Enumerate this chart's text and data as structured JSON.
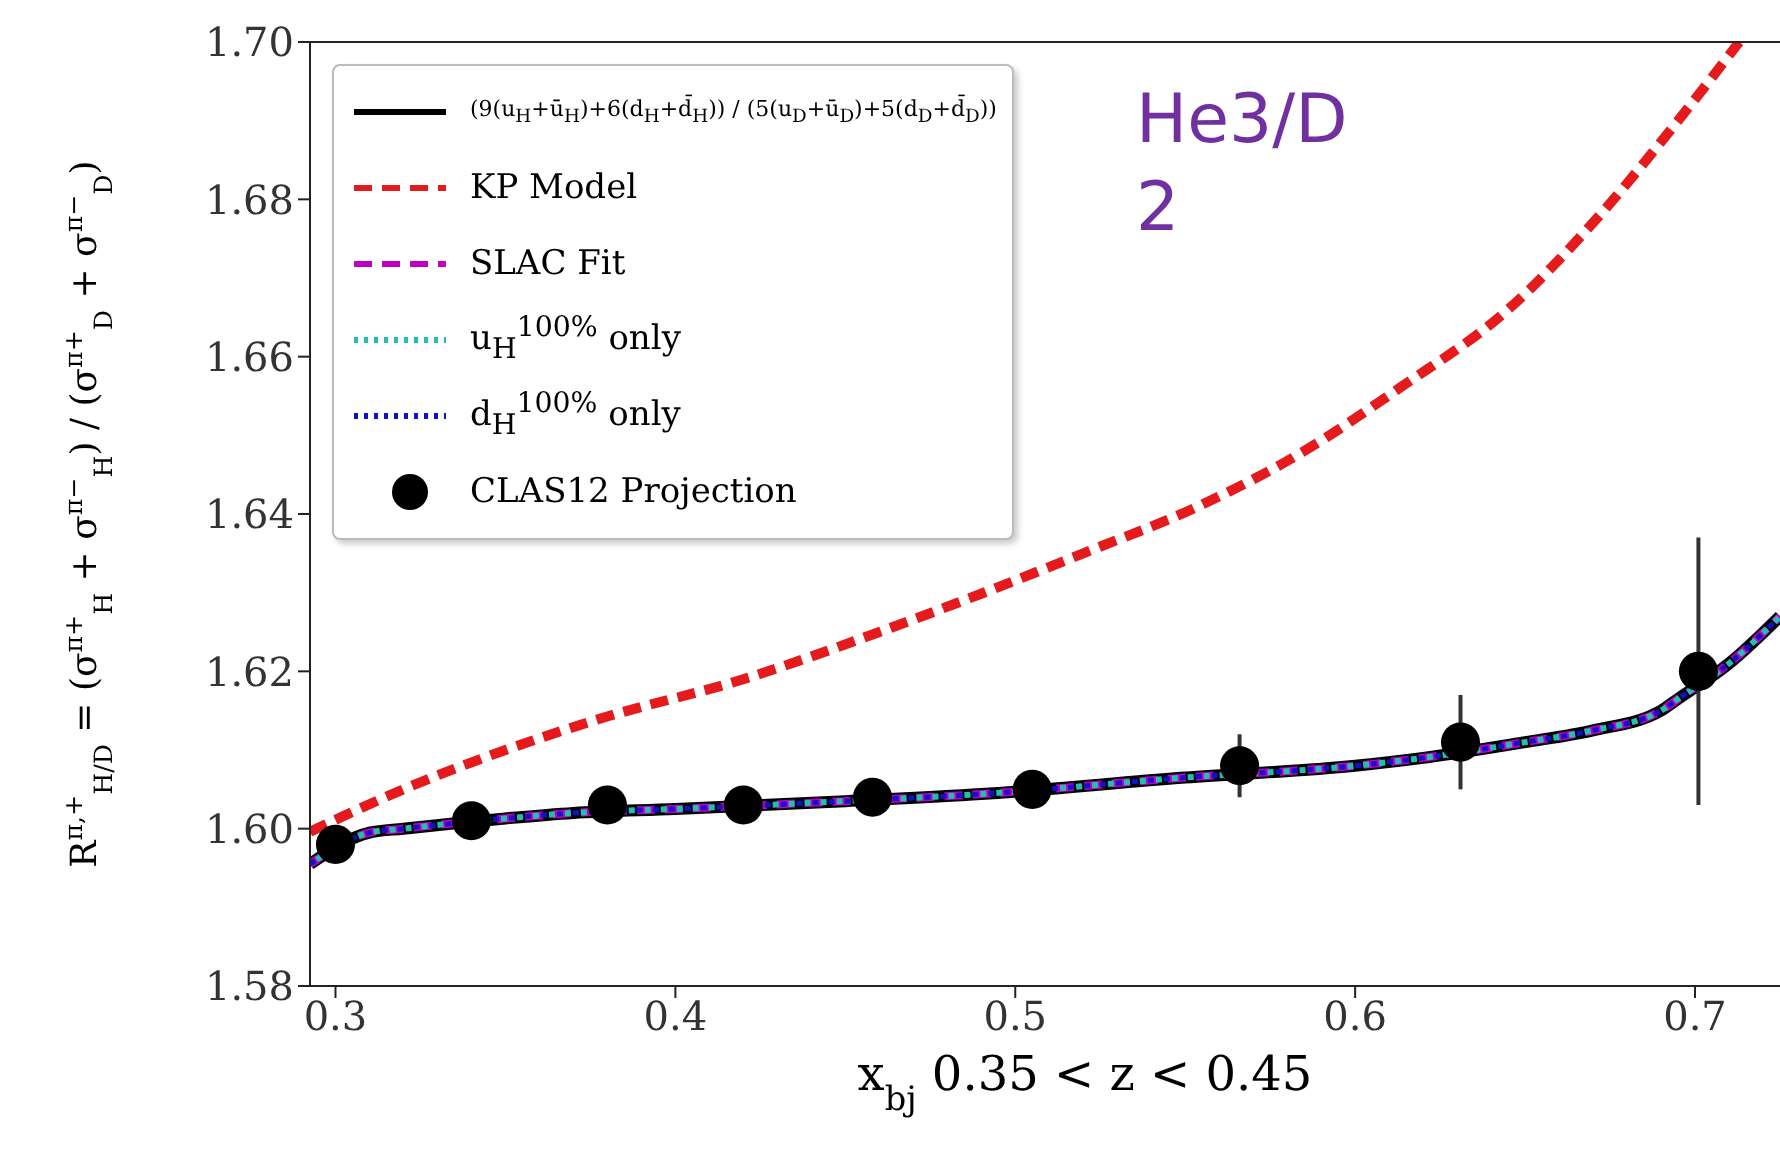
{
  "chart_data": {
    "type": "line",
    "xlabel": "x$_{bj}$ 0.35 < z < 0.45",
    "ylabel": "R$^{π,+}$$_{H/D}$ = (σ$^{π+}$$_{H}$ + σ$^{π−}$$_{H}$) / (σ$^{π+}$$_{D}$ + σ$^{π−}$$_{D}$)",
    "annotations": [
      "He3/D 2"
    ],
    "xlim": [
      0.2925,
      0.725
    ],
    "xticks": [
      0.3,
      0.4,
      0.5,
      0.6,
      0.7
    ],
    "ylim": [
      1.58,
      1.7
    ],
    "yticks": [
      1.58,
      {
        "value": 1.6,
        "label": "1.60"
      },
      1.62,
      1.64,
      1.66,
      1.68,
      {
        "value": 1.7,
        "label": "1.70"
      }
    ],
    "grid": false,
    "legend": "top left",
    "series": [
      {
        "name": "(9(u$_{H}$+ū$_{H}$)+6(d$_{H}$+d̄$_{H}$)) / (5(u$_{D}$+ū$_{D}$)+5(d$_{D}$+d̄$_{D}$))",
        "color": "#000000",
        "line_style": "solid",
        "x": [
          0.2925,
          0.31,
          0.32,
          0.35,
          0.37,
          0.4,
          0.45,
          0.49,
          0.55,
          0.6,
          0.62,
          0.65,
          0.67,
          0.69,
          0.695,
          0.71,
          0.725
        ],
        "values": [
          1.5955,
          1.5995,
          1.6,
          1.6013,
          1.602,
          1.6025,
          1.6035,
          1.6044,
          1.6065,
          1.608,
          1.609,
          1.611,
          1.6125,
          1.615,
          1.6165,
          1.621,
          1.627
        ]
      },
      {
        "name": "KP Model",
        "color": "#e41a1c",
        "line_style": "dashed",
        "x": [
          0.2925,
          0.32,
          0.35,
          0.378,
          0.42,
          0.46,
          0.489,
          0.52,
          0.554,
          0.585,
          0.613,
          0.645,
          0.672,
          0.695,
          0.713
        ],
        "values": [
          1.5996,
          1.605,
          1.61,
          1.614,
          1.619,
          1.625,
          1.6297,
          1.635,
          1.641,
          1.648,
          1.656,
          1.666,
          1.678,
          1.69,
          1.7
        ]
      },
      {
        "name": "SLAC Fit",
        "color": "#c000c0",
        "line_style": "dashed",
        "x": [
          0.2925,
          0.31,
          0.32,
          0.35,
          0.37,
          0.4,
          0.45,
          0.49,
          0.55,
          0.6,
          0.62,
          0.65,
          0.67,
          0.69,
          0.695,
          0.71,
          0.725
        ],
        "values": [
          1.5955,
          1.5995,
          1.6,
          1.6013,
          1.602,
          1.6025,
          1.6035,
          1.6044,
          1.6065,
          1.608,
          1.609,
          1.611,
          1.6125,
          1.615,
          1.6165,
          1.621,
          1.627
        ]
      },
      {
        "name": "u$_{H}$$^{100%}$ only",
        "color": "#20c0b0",
        "line_style": "dotted",
        "x": [
          0.2925,
          0.31,
          0.32,
          0.35,
          0.37,
          0.4,
          0.45,
          0.49,
          0.55,
          0.6,
          0.62,
          0.65,
          0.67,
          0.69,
          0.695,
          0.71,
          0.725
        ],
        "values": [
          1.5955,
          1.5995,
          1.6,
          1.6013,
          1.602,
          1.6025,
          1.6035,
          1.6044,
          1.6065,
          1.608,
          1.609,
          1.611,
          1.6125,
          1.615,
          1.6165,
          1.621,
          1.627
        ]
      },
      {
        "name": "d$_{H}$$^{100%}$ only",
        "color": "#1010d0",
        "line_style": "dotted",
        "x": [
          0.2925,
          0.31,
          0.32,
          0.35,
          0.37,
          0.4,
          0.45,
          0.49,
          0.55,
          0.6,
          0.62,
          0.65,
          0.67,
          0.69,
          0.695,
          0.71,
          0.725
        ],
        "values": [
          1.5955,
          1.5995,
          1.6,
          1.6013,
          1.602,
          1.6025,
          1.6035,
          1.6044,
          1.6065,
          1.608,
          1.609,
          1.611,
          1.6125,
          1.615,
          1.6165,
          1.621,
          1.627
        ]
      },
      {
        "name": "CLAS12 Projection",
        "type": "scatter",
        "marker": "circle",
        "color": "#000000",
        "x": [
          0.3,
          0.34,
          0.38,
          0.42,
          0.458,
          0.505,
          0.566,
          0.631,
          0.701
        ],
        "values": [
          1.598,
          1.601,
          1.603,
          1.603,
          1.604,
          1.605,
          1.608,
          1.611,
          1.62
        ],
        "errors": [
          null,
          null,
          null,
          null,
          null,
          null,
          0.004,
          0.006,
          0.017
        ]
      }
    ]
  }
}
